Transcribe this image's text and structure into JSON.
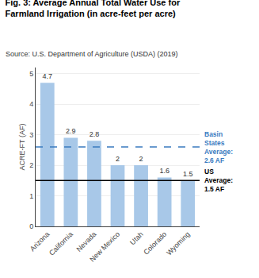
{
  "chart_data": {
    "type": "bar",
    "title": "Fig. 3: Average Annual Total Water Use for Farmland Irrigation (in acre-feet per acre)",
    "subtitle": "Source: U.S. Department of Agriculture (USDA) (2019)",
    "categories": [
      "Arizona",
      "California",
      "Nevada",
      "New Mexico",
      "Utah",
      "Colorado",
      "Wyoming"
    ],
    "values": [
      4.7,
      2.9,
      2.8,
      2.0,
      2.0,
      1.6,
      1.5
    ],
    "color": "#a8c8e8",
    "ylabel": "ACRE-FT (AF)",
    "ylim": [
      0,
      5.2
    ],
    "yticks": [
      0,
      1,
      2,
      3,
      4,
      5
    ],
    "grid": true,
    "data_labels": true,
    "annotations": [
      {
        "text": "Basin\nStates\nAverage:\n2.6 AF",
        "y": 2.6,
        "color": "#3a7bbf",
        "line_style": "dashed"
      },
      {
        "text": "US\nAverage:\n1.5 AF",
        "y": 1.5,
        "color": "#000000",
        "line_style": "solid"
      }
    ]
  }
}
